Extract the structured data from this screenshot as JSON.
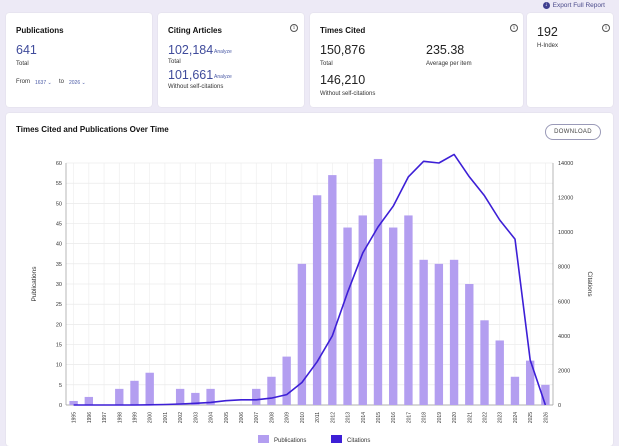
{
  "header": {
    "export_label": "Export Full Report",
    "export_icon": "download-icon"
  },
  "publications": {
    "title": "Publications",
    "count": "641",
    "count_label": "Total",
    "from_label": "From",
    "from_year": "1637",
    "to_label": "to",
    "to_year": "2026"
  },
  "citing": {
    "title": "Citing Articles",
    "total": "102,184",
    "total_label": "Total",
    "without_self": "101,661",
    "without_self_label": "Without self-citations",
    "analyze_label": "Analyze"
  },
  "times_cited": {
    "title": "Times Cited",
    "total": "150,876",
    "total_label": "Total",
    "average": "235.38",
    "average_label": "Average per item",
    "without_self": "146,210",
    "without_self_label": "Without self-citations"
  },
  "h_index": {
    "value": "192",
    "label": "H-Index"
  },
  "chart_section": {
    "title": "Times Cited and Publications Over Time",
    "download_label": "DOWNLOAD"
  },
  "chart_data": {
    "type": "bar",
    "colors": {
      "publications": "#b39ef0",
      "citations": "#3d1fd6"
    },
    "years": [
      "1995",
      "1996",
      "1997",
      "1998",
      "1999",
      "2000",
      "2001",
      "2002",
      "2003",
      "2004",
      "2005",
      "2006",
      "2007",
      "2008",
      "2009",
      "2010",
      "2011",
      "2012",
      "2013",
      "2014",
      "2015",
      "2016",
      "2017",
      "2018",
      "2019",
      "2020",
      "2021",
      "2022",
      "2023",
      "2024",
      "2025",
      "2026"
    ],
    "series": [
      {
        "name": "Publications",
        "type": "bar",
        "axis": "left",
        "values": [
          1,
          2,
          0,
          4,
          6,
          8,
          0,
          4,
          3,
          4,
          0,
          0,
          4,
          7,
          12,
          35,
          52,
          57,
          44,
          47,
          61,
          44,
          47,
          36,
          35,
          36,
          30,
          21,
          16,
          7,
          11,
          5
        ]
      },
      {
        "name": "Citations",
        "type": "line",
        "axis": "right",
        "values": [
          0,
          0,
          0,
          0,
          0,
          10,
          30,
          60,
          100,
          150,
          250,
          300,
          300,
          400,
          600,
          1300,
          2500,
          4000,
          6500,
          8800,
          10300,
          11500,
          13200,
          14100,
          14000,
          14500,
          13200,
          12100,
          10700,
          9600,
          2600,
          0
        ]
      }
    ],
    "ylabel_left": "Publications",
    "ylabel_right": "Citations",
    "ylim_left": [
      0,
      60
    ],
    "ylim_right": [
      0,
      14000
    ],
    "yticks_left": [
      0,
      5,
      10,
      15,
      20,
      25,
      30,
      35,
      40,
      45,
      50,
      55,
      60
    ],
    "yticks_right": [
      0,
      2000,
      4000,
      6000,
      8000,
      10000,
      12000,
      14000
    ],
    "grid": true,
    "legend_placement": "bottom-center"
  }
}
